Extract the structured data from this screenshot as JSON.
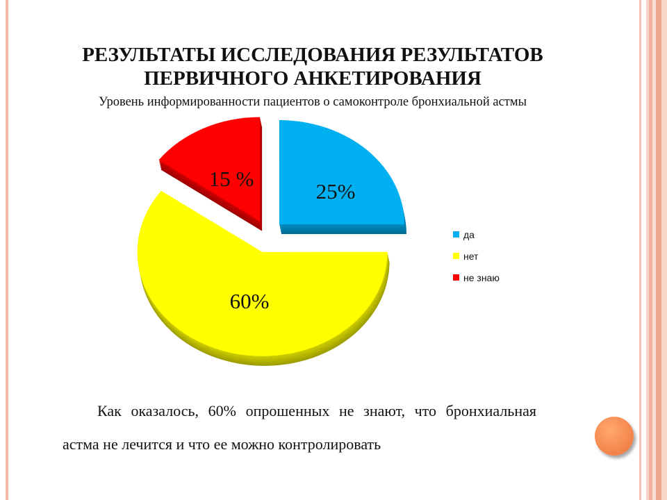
{
  "slide": {
    "title_line1": "РЕЗУЛЬТАТЫ ИССЛЕДОВАНИЯ РЕЗУЛЬТАТОВ",
    "title_line2": "ПЕРВИЧНОГО АНКЕТИРОВАНИЯ",
    "body_text": "Как оказалось, 60% опрошенных не знают, что бронхиальная астма не лечится и что ее можно контролировать",
    "colors": {
      "frame": "#f4b8a5",
      "accent": "#f5884e"
    }
  },
  "chart_data": {
    "type": "pie",
    "title": "Уровень информированности пациентов о самоконтроле бронхиальной астмы",
    "categories": [
      "да",
      "нет",
      "не знаю"
    ],
    "values": [
      25,
      60,
      15
    ],
    "data_labels": [
      "25%",
      "60%",
      "15 %"
    ],
    "colors": [
      "#00b0f0",
      "#ffff00",
      "#ff0000"
    ],
    "exploded": true,
    "legend_position": "right"
  }
}
